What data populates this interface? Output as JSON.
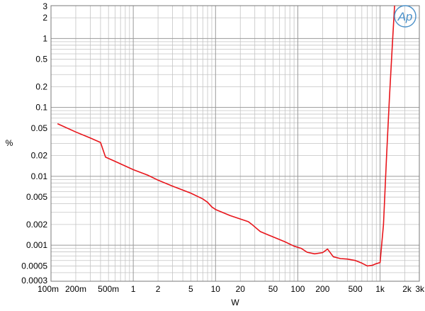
{
  "chart_data": {
    "type": "line",
    "xlabel": "W",
    "ylabel": "%",
    "xscale": "log",
    "yscale": "log",
    "xlim": [
      0.1,
      3000
    ],
    "ylim": [
      0.0003,
      3
    ],
    "grid": true,
    "x_ticks": [
      {
        "value": 0.1,
        "label": "100m"
      },
      {
        "value": 0.2,
        "label": "200m"
      },
      {
        "value": 0.5,
        "label": "500m"
      },
      {
        "value": 1,
        "label": "1"
      },
      {
        "value": 2,
        "label": "2"
      },
      {
        "value": 5,
        "label": "5"
      },
      {
        "value": 10,
        "label": "10"
      },
      {
        "value": 20,
        "label": "20"
      },
      {
        "value": 50,
        "label": "50"
      },
      {
        "value": 100,
        "label": "100"
      },
      {
        "value": 200,
        "label": "200"
      },
      {
        "value": 500,
        "label": "500"
      },
      {
        "value": 1000,
        "label": "1k"
      },
      {
        "value": 2000,
        "label": "2k"
      },
      {
        "value": 3000,
        "label": "3k"
      }
    ],
    "y_ticks": [
      {
        "value": 3,
        "label": "3"
      },
      {
        "value": 2,
        "label": "2"
      },
      {
        "value": 1,
        "label": "1"
      },
      {
        "value": 0.5,
        "label": "0.5"
      },
      {
        "value": 0.2,
        "label": "0.2"
      },
      {
        "value": 0.1,
        "label": "0.1"
      },
      {
        "value": 0.05,
        "label": "0.05"
      },
      {
        "value": 0.02,
        "label": "0.02"
      },
      {
        "value": 0.01,
        "label": "0.01"
      },
      {
        "value": 0.005,
        "label": "0.005"
      },
      {
        "value": 0.002,
        "label": "0.002"
      },
      {
        "value": 0.001,
        "label": "0.001"
      },
      {
        "value": 0.0005,
        "label": "0.0005"
      },
      {
        "value": 0.0003,
        "label": "0.0003"
      }
    ],
    "series": [
      {
        "color": "#e8151b",
        "points": [
          [
            0.12,
            0.058
          ],
          [
            0.2,
            0.044
          ],
          [
            0.3,
            0.036
          ],
          [
            0.4,
            0.031
          ],
          [
            0.46,
            0.019
          ],
          [
            0.6,
            0.0165
          ],
          [
            1,
            0.0125
          ],
          [
            1.5,
            0.0104
          ],
          [
            2,
            0.0088
          ],
          [
            3,
            0.0072
          ],
          [
            5,
            0.0057
          ],
          [
            7,
            0.0047
          ],
          [
            8,
            0.0042
          ],
          [
            9,
            0.0036
          ],
          [
            10,
            0.0033
          ],
          [
            15,
            0.0027
          ],
          [
            20,
            0.0024
          ],
          [
            25,
            0.0022
          ],
          [
            28,
            0.00198
          ],
          [
            35,
            0.00158
          ],
          [
            50,
            0.00132
          ],
          [
            70,
            0.00112
          ],
          [
            90,
            0.00097
          ],
          [
            110,
            0.0009
          ],
          [
            130,
            0.00079
          ],
          [
            160,
            0.00075
          ],
          [
            200,
            0.00078
          ],
          [
            230,
            0.00088
          ],
          [
            270,
            0.00068
          ],
          [
            330,
            0.00064
          ],
          [
            400,
            0.00063
          ],
          [
            500,
            0.0006
          ],
          [
            600,
            0.00055
          ],
          [
            700,
            0.0005
          ],
          [
            800,
            0.00051
          ],
          [
            900,
            0.00054
          ],
          [
            1000,
            0.00056
          ],
          [
            1100,
            0.002
          ],
          [
            1200,
            0.02
          ],
          [
            1300,
            0.14
          ],
          [
            1400,
            0.7
          ],
          [
            1500,
            3.0
          ]
        ]
      }
    ]
  },
  "logo": {
    "text": "Ap",
    "color": "#4a90c8"
  }
}
